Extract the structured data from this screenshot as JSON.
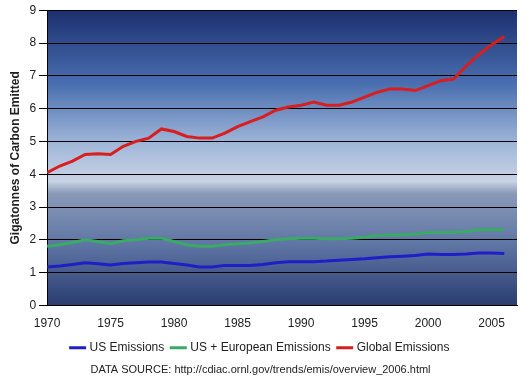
{
  "chart_data": {
    "type": "line",
    "y_label": "Gigatonnes of Carbon Emitted",
    "annotation": "DATA SOURCE: http://cdiac.ornl.gov/trends/emis/overview_2006.html",
    "x": [
      1970,
      1971,
      1972,
      1973,
      1974,
      1975,
      1976,
      1977,
      1978,
      1979,
      1980,
      1981,
      1982,
      1983,
      1984,
      1985,
      1986,
      1987,
      1988,
      1989,
      1990,
      1991,
      1992,
      1993,
      1994,
      1995,
      1996,
      1997,
      1998,
      1999,
      2000,
      2001,
      2002,
      2003,
      2004,
      2005,
      2006
    ],
    "series": [
      {
        "name": "US Emissions",
        "color": "#1f1fc8",
        "values": [
          1.17,
          1.2,
          1.25,
          1.3,
          1.27,
          1.23,
          1.28,
          1.3,
          1.32,
          1.32,
          1.28,
          1.23,
          1.17,
          1.17,
          1.22,
          1.22,
          1.22,
          1.25,
          1.3,
          1.33,
          1.33,
          1.33,
          1.35,
          1.38,
          1.4,
          1.42,
          1.45,
          1.48,
          1.5,
          1.52,
          1.57,
          1.55,
          1.55,
          1.57,
          1.6,
          1.6,
          1.58
        ]
      },
      {
        "name": "US + European Emissions",
        "color": "#3aaa66",
        "values": [
          1.8,
          1.85,
          1.92,
          2.0,
          1.95,
          1.88,
          1.97,
          2.0,
          2.05,
          2.05,
          1.95,
          1.85,
          1.8,
          1.8,
          1.85,
          1.88,
          1.9,
          1.95,
          2.0,
          2.03,
          2.05,
          2.05,
          2.03,
          2.03,
          2.05,
          2.08,
          2.13,
          2.15,
          2.15,
          2.18,
          2.22,
          2.22,
          2.22,
          2.25,
          2.3,
          2.32,
          2.3
        ]
      },
      {
        "name": "Global Emissions",
        "color": "#d81e1e",
        "values": [
          4.05,
          4.25,
          4.4,
          4.6,
          4.62,
          4.6,
          4.85,
          5.0,
          5.1,
          5.38,
          5.3,
          5.15,
          5.1,
          5.1,
          5.25,
          5.45,
          5.6,
          5.75,
          5.95,
          6.05,
          6.1,
          6.2,
          6.1,
          6.1,
          6.2,
          6.35,
          6.5,
          6.6,
          6.6,
          6.55,
          6.7,
          6.85,
          6.9,
          7.3,
          7.65,
          7.95,
          8.2
        ]
      }
    ],
    "xlim": [
      1970,
      2007
    ],
    "xticks": [
      1970,
      1975,
      1980,
      1985,
      1990,
      1995,
      2000,
      2005
    ],
    "ylim": [
      0,
      9
    ],
    "yticks": [
      0,
      1,
      2,
      3,
      4,
      5,
      6,
      7,
      8,
      9
    ],
    "grid": true,
    "legend": "bottom"
  }
}
